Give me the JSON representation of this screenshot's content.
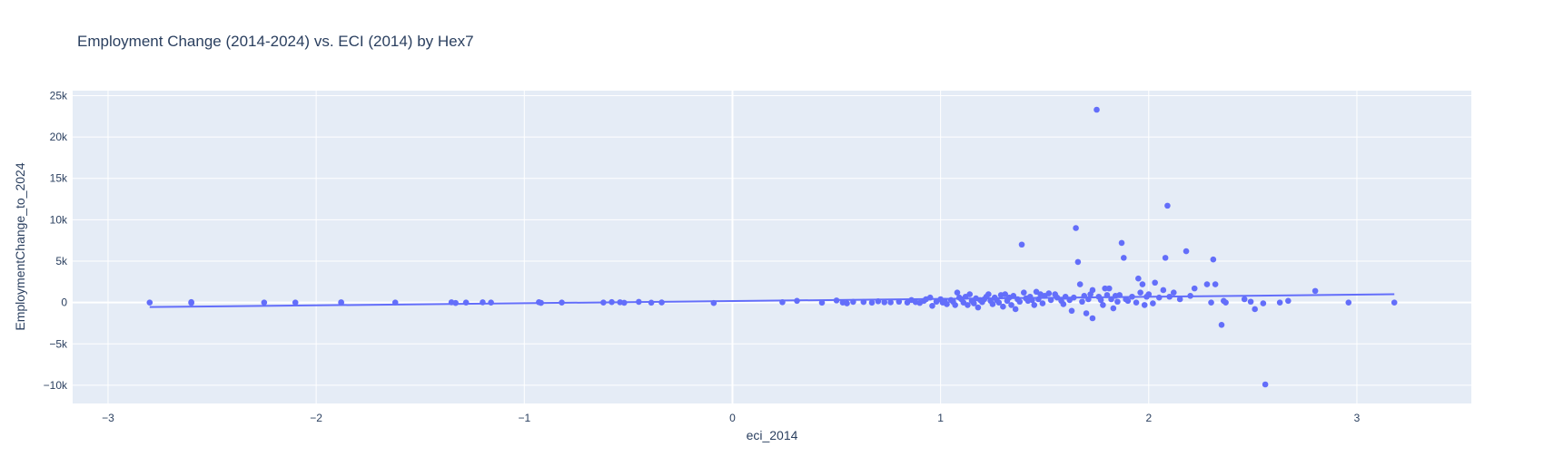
{
  "chart_data": {
    "type": "scatter",
    "title": "Employment Change (2014-2024) vs. ECI (2014) by Hex7",
    "xlabel": "eci_2014",
    "ylabel": "EmploymentChange_to_2024",
    "xlim": [
      -3.17,
      3.55
    ],
    "ylim": [
      -12200,
      25600
    ],
    "x_ticks": [
      -3,
      -2,
      -1,
      0,
      1,
      2,
      3
    ],
    "x_tick_labels": [
      "−3",
      "−2",
      "−1",
      "0",
      "1",
      "2",
      "3"
    ],
    "y_ticks": [
      -10000,
      -5000,
      0,
      5000,
      10000,
      15000,
      20000,
      25000
    ],
    "y_tick_labels": [
      "−10k",
      "−5k",
      "0",
      "5k",
      "10k",
      "15k",
      "20k",
      "25k"
    ],
    "grid": true,
    "colors": {
      "marker": "#636efa",
      "plot_bg": "#e5ecf6",
      "grid": "#ffffff",
      "text": "#2a3f5f"
    },
    "trendline": {
      "x": [
        -2.8,
        3.18
      ],
      "y": [
        -550,
        1000
      ]
    },
    "points": [
      [
        -2.8,
        0
      ],
      [
        -2.6,
        50
      ],
      [
        -2.6,
        -50
      ],
      [
        -2.25,
        0
      ],
      [
        -2.1,
        0
      ],
      [
        -1.88,
        30
      ],
      [
        -1.88,
        -30
      ],
      [
        -1.62,
        0
      ],
      [
        -1.35,
        20
      ],
      [
        -1.33,
        -60
      ],
      [
        -1.28,
        0
      ],
      [
        -1.2,
        20
      ],
      [
        -1.16,
        0
      ],
      [
        -0.93,
        40
      ],
      [
        -0.92,
        -40
      ],
      [
        -0.82,
        0
      ],
      [
        -0.62,
        0
      ],
      [
        -0.58,
        50
      ],
      [
        -0.54,
        30
      ],
      [
        -0.52,
        -30
      ],
      [
        -0.45,
        80
      ],
      [
        -0.39,
        -20
      ],
      [
        -0.34,
        10
      ],
      [
        -0.09,
        -60
      ],
      [
        0.24,
        40
      ],
      [
        0.31,
        200
      ],
      [
        0.43,
        -20
      ],
      [
        0.5,
        250
      ],
      [
        0.53,
        0
      ],
      [
        0.55,
        -100
      ],
      [
        0.58,
        80
      ],
      [
        0.63,
        60
      ],
      [
        0.67,
        -20
      ],
      [
        0.7,
        150
      ],
      [
        0.73,
        30
      ],
      [
        0.76,
        20
      ],
      [
        0.8,
        100
      ],
      [
        0.84,
        0
      ],
      [
        0.86,
        300
      ],
      [
        0.88,
        50
      ],
      [
        0.9,
        -50
      ],
      [
        0.92,
        200
      ],
      [
        0.93,
        400
      ],
      [
        0.95,
        600
      ],
      [
        0.96,
        -400
      ],
      [
        0.98,
        100
      ],
      [
        1.0,
        400
      ],
      [
        1.01,
        0
      ],
      [
        1.02,
        200
      ],
      [
        1.03,
        -200
      ],
      [
        1.05,
        300
      ],
      [
        1.06,
        100
      ],
      [
        1.07,
        -300
      ],
      [
        1.08,
        1200
      ],
      [
        1.09,
        600
      ],
      [
        1.1,
        400
      ],
      [
        1.11,
        0
      ],
      [
        1.12,
        700
      ],
      [
        1.13,
        -300
      ],
      [
        1.14,
        1000
      ],
      [
        1.15,
        200
      ],
      [
        1.16,
        -100
      ],
      [
        1.17,
        500
      ],
      [
        1.18,
        -600
      ],
      [
        1.19,
        300
      ],
      [
        1.2,
        50
      ],
      [
        1.21,
        400
      ],
      [
        1.22,
        700
      ],
      [
        1.23,
        1000
      ],
      [
        1.24,
        200
      ],
      [
        1.25,
        -200
      ],
      [
        1.26,
        600
      ],
      [
        1.27,
        300
      ],
      [
        1.28,
        0
      ],
      [
        1.29,
        900
      ],
      [
        1.3,
        -500
      ],
      [
        1.31,
        1000
      ],
      [
        1.32,
        200
      ],
      [
        1.33,
        600
      ],
      [
        1.34,
        -300
      ],
      [
        1.35,
        800
      ],
      [
        1.36,
        -800
      ],
      [
        1.37,
        400
      ],
      [
        1.38,
        100
      ],
      [
        1.39,
        7000
      ],
      [
        1.4,
        1200
      ],
      [
        1.41,
        500
      ],
      [
        1.42,
        200
      ],
      [
        1.43,
        700
      ],
      [
        1.44,
        300
      ],
      [
        1.45,
        -300
      ],
      [
        1.46,
        1300
      ],
      [
        1.47,
        400
      ],
      [
        1.48,
        1000
      ],
      [
        1.49,
        -100
      ],
      [
        1.5,
        800
      ],
      [
        1.52,
        1100
      ],
      [
        1.53,
        300
      ],
      [
        1.55,
        1000
      ],
      [
        1.56,
        600
      ],
      [
        1.58,
        200
      ],
      [
        1.59,
        -200
      ],
      [
        1.6,
        700
      ],
      [
        1.62,
        300
      ],
      [
        1.63,
        -1000
      ],
      [
        1.64,
        600
      ],
      [
        1.65,
        9000
      ],
      [
        1.66,
        4900
      ],
      [
        1.67,
        2200
      ],
      [
        1.68,
        100
      ],
      [
        1.69,
        800
      ],
      [
        1.7,
        -1300
      ],
      [
        1.71,
        400
      ],
      [
        1.72,
        1000
      ],
      [
        1.73,
        -1900
      ],
      [
        1.73,
        1500
      ],
      [
        1.75,
        23300
      ],
      [
        1.76,
        700
      ],
      [
        1.77,
        300
      ],
      [
        1.78,
        -300
      ],
      [
        1.79,
        1700
      ],
      [
        1.8,
        900
      ],
      [
        1.81,
        1700
      ],
      [
        1.82,
        400
      ],
      [
        1.83,
        -700
      ],
      [
        1.84,
        800
      ],
      [
        1.85,
        100
      ],
      [
        1.86,
        900
      ],
      [
        1.87,
        7200
      ],
      [
        1.88,
        5400
      ],
      [
        1.89,
        400
      ],
      [
        1.9,
        200
      ],
      [
        1.92,
        700
      ],
      [
        1.94,
        0
      ],
      [
        1.95,
        2900
      ],
      [
        1.96,
        1200
      ],
      [
        1.97,
        2200
      ],
      [
        1.98,
        -300
      ],
      [
        1.99,
        700
      ],
      [
        2.0,
        1000
      ],
      [
        2.02,
        -100
      ],
      [
        2.03,
        2400
      ],
      [
        2.05,
        600
      ],
      [
        2.07,
        1500
      ],
      [
        2.08,
        5400
      ],
      [
        2.09,
        11700
      ],
      [
        2.1,
        700
      ],
      [
        2.12,
        1200
      ],
      [
        2.15,
        400
      ],
      [
        2.18,
        6200
      ],
      [
        2.2,
        800
      ],
      [
        2.22,
        1700
      ],
      [
        2.28,
        2200
      ],
      [
        2.3,
        0
      ],
      [
        2.31,
        5200
      ],
      [
        2.32,
        2200
      ],
      [
        2.35,
        -2700
      ],
      [
        2.36,
        200
      ],
      [
        2.37,
        0
      ],
      [
        2.46,
        400
      ],
      [
        2.49,
        100
      ],
      [
        2.51,
        -800
      ],
      [
        2.55,
        -100
      ],
      [
        2.56,
        -9900
      ],
      [
        2.63,
        0
      ],
      [
        2.67,
        200
      ],
      [
        2.8,
        1400
      ],
      [
        2.96,
        0
      ],
      [
        3.18,
        0
      ]
    ]
  }
}
